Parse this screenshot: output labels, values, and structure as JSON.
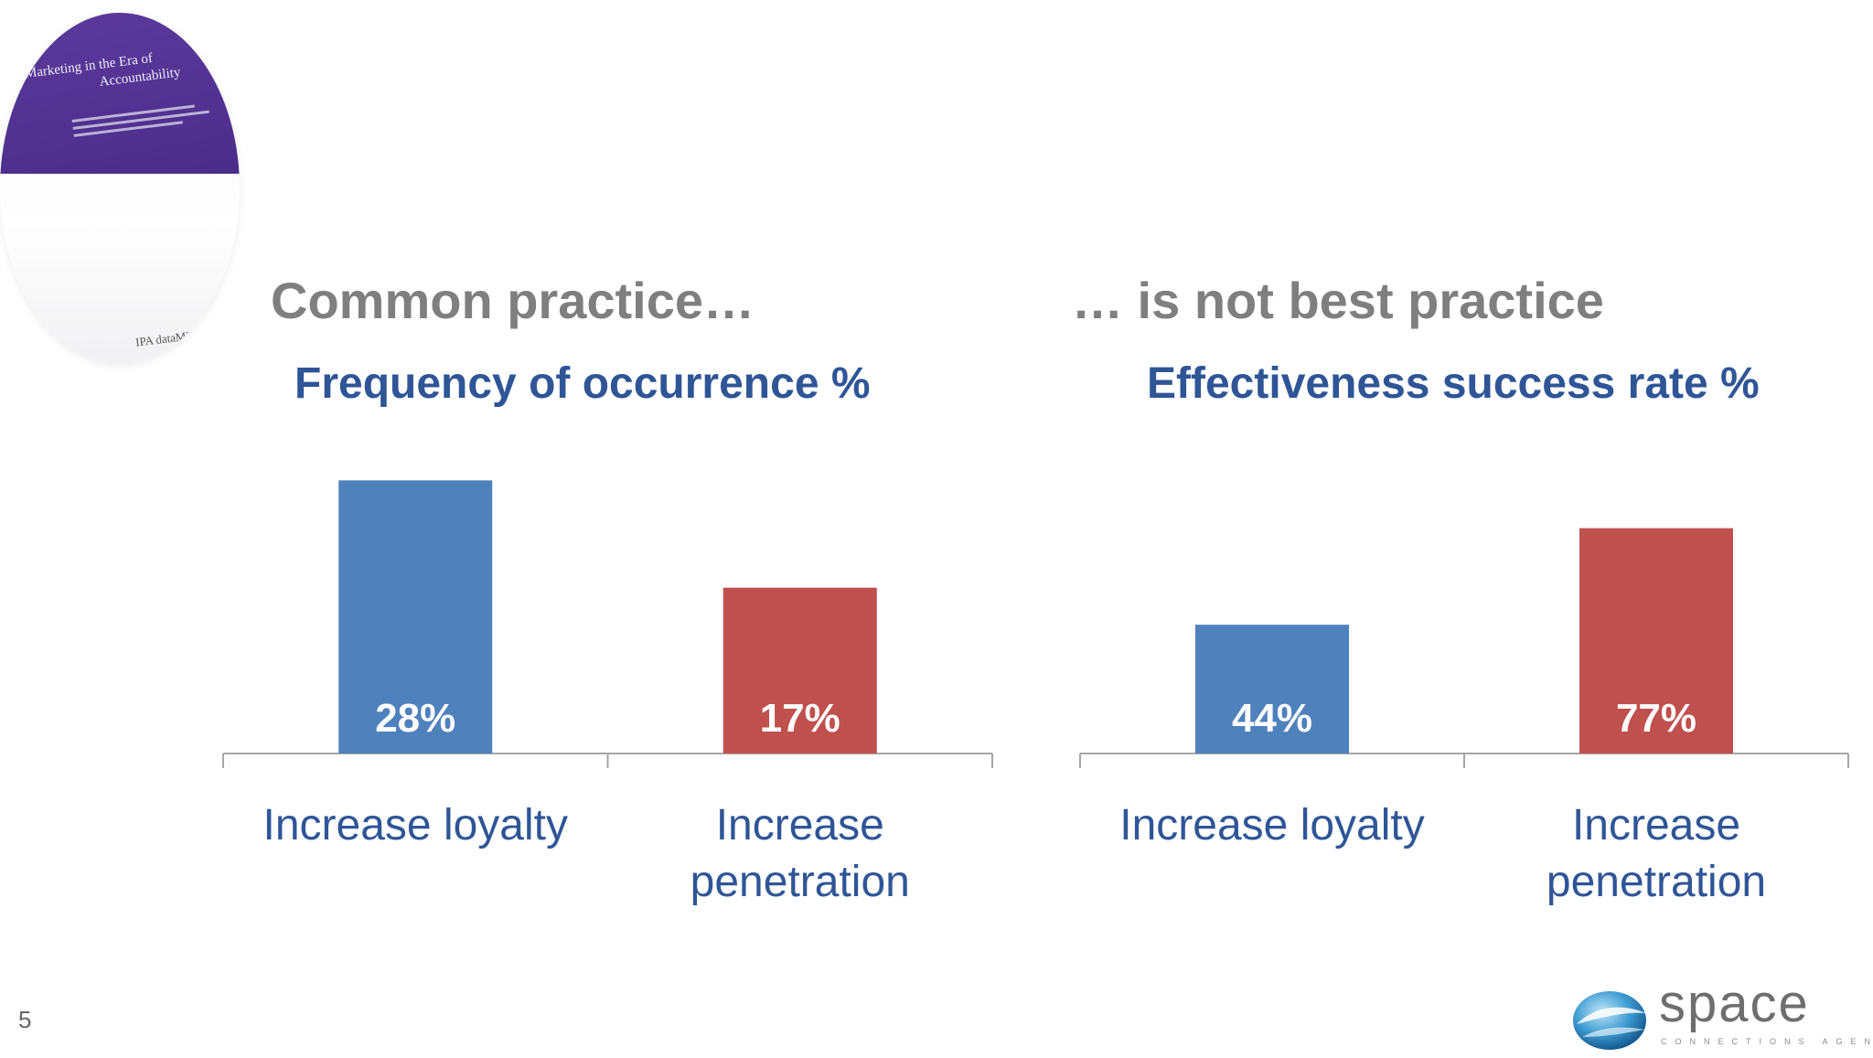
{
  "book": {
    "title_line1": "Marketing in the Era of",
    "title_line2": "Accountability",
    "logo": "IPA dataMINE"
  },
  "headings": {
    "left": "Common practice…",
    "right": "… is not best practice"
  },
  "colors": {
    "loyalty": "#4f81bd",
    "penetration": "#c0504d",
    "axis": "#a6a6a6",
    "category_text": "#2f5597",
    "heading_gray": "#7f7f7f"
  },
  "chart_data": [
    {
      "type": "bar",
      "title": "Frequency of occurrence %",
      "categories": [
        "Increase loyalty",
        "Increase penetration"
      ],
      "values": [
        28,
        17
      ],
      "data_labels": [
        "28%",
        "17%"
      ],
      "ylim": [
        0,
        30
      ]
    },
    {
      "type": "bar",
      "title": "Effectiveness success rate %",
      "categories": [
        "Increase loyalty",
        "Increase penetration"
      ],
      "values": [
        44,
        77
      ],
      "data_labels": [
        "44%",
        "77%"
      ],
      "ylim": [
        0,
        100
      ]
    }
  ],
  "footer": {
    "page_number": "5",
    "logo_word": "space",
    "logo_tagline": "CONNECTIONS AGENCY"
  }
}
